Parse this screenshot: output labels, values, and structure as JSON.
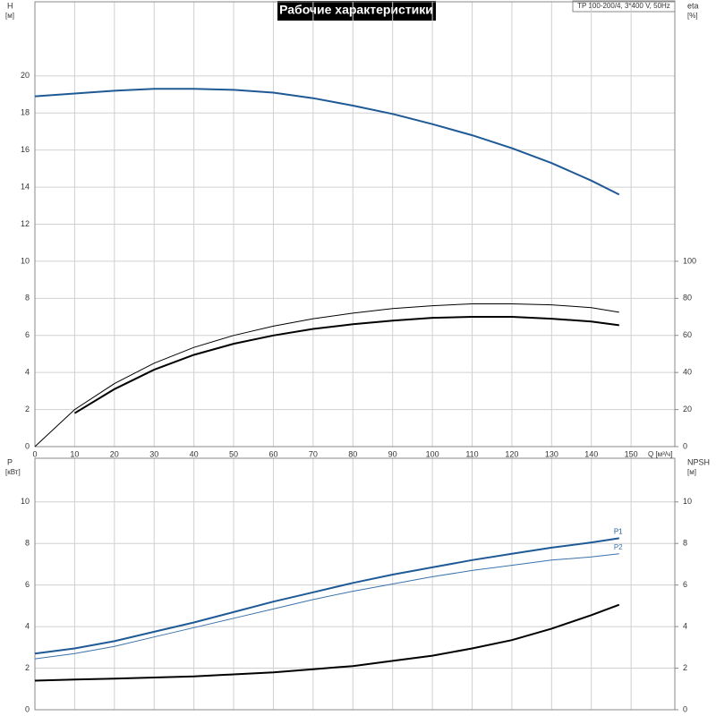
{
  "chart_data": [
    {
      "type": "line",
      "title": "Рабочие характеристики",
      "subtitle": "TP 100-200/4, 3*400 V, 50Hz",
      "ylabel": "H",
      "yunit": "[м]",
      "y2label": "eta",
      "y2unit": "[%]",
      "xlabel": "Q [м³/ч]",
      "x": [
        0,
        10,
        20,
        30,
        40,
        50,
        60,
        70,
        80,
        90,
        100,
        110,
        120,
        130,
        140,
        147
      ],
      "xlim": [
        0,
        161
      ],
      "xticks": [
        0,
        10,
        20,
        30,
        40,
        50,
        60,
        70,
        80,
        90,
        100,
        110,
        120,
        130,
        140,
        150
      ],
      "ylim": [
        0,
        24
      ],
      "yticks": [
        0,
        2,
        4,
        6,
        8,
        10,
        12,
        14,
        16,
        18,
        20
      ],
      "y2lim": [
        0,
        240
      ],
      "y2ticks": [
        0,
        20,
        40,
        60,
        80,
        100
      ],
      "grid": true,
      "series": [
        {
          "color": "#1f5a96",
          "values": [
            18.9,
            19.05,
            19.2,
            19.3,
            19.3,
            19.25,
            19.1,
            18.8,
            18.4,
            17.95,
            17.4,
            16.8,
            16.1,
            15.3,
            14.35,
            13.6
          ]
        },
        {
          "color": "#000000",
          "axis": "y2",
          "values": [
            0,
            20,
            34,
            45,
            53.5,
            60,
            65,
            69,
            72,
            74.5,
            76,
            77,
            77,
            76.5,
            75,
            72.5
          ]
        },
        {
          "color": "#000000",
          "axis": "y2",
          "values": [
            null,
            18,
            31,
            41.5,
            49.5,
            55.5,
            60,
            63.5,
            66,
            68,
            69.5,
            70,
            70,
            69,
            67.5,
            65.5
          ]
        }
      ]
    },
    {
      "type": "line",
      "ylabel": "P",
      "yunit": "[кВт]",
      "y2label": "NPSH",
      "y2unit": "[м]",
      "x": [
        0,
        10,
        20,
        30,
        40,
        50,
        60,
        70,
        80,
        90,
        100,
        110,
        120,
        130,
        140,
        147
      ],
      "xlim": [
        0,
        161
      ],
      "xticks": [
        0,
        10,
        20,
        30,
        40,
        50,
        60,
        70,
        80,
        90,
        100,
        110,
        120,
        130,
        140,
        150
      ],
      "ylim": [
        0,
        12.1
      ],
      "yticks": [
        0,
        2,
        4,
        6,
        8,
        10
      ],
      "y2lim": [
        0,
        12.1
      ],
      "y2ticks": [
        0,
        2,
        4,
        6,
        8,
        10
      ],
      "grid": true,
      "series": [
        {
          "name": "P1",
          "color": "#1f5a96",
          "values": [
            2.7,
            2.95,
            3.3,
            3.75,
            4.2,
            4.7,
            5.2,
            5.65,
            6.1,
            6.5,
            6.85,
            7.2,
            7.5,
            7.8,
            8.05,
            8.25
          ]
        },
        {
          "name": "P2",
          "color": "#3a72ab",
          "values": [
            2.45,
            2.7,
            3.05,
            3.5,
            3.95,
            4.4,
            4.85,
            5.3,
            5.7,
            6.05,
            6.4,
            6.7,
            6.95,
            7.2,
            7.35,
            7.5
          ]
        },
        {
          "color": "#000000",
          "axis": "y2",
          "values": [
            1.4,
            1.45,
            1.5,
            1.55,
            1.6,
            1.7,
            1.8,
            1.95,
            2.1,
            2.35,
            2.6,
            2.95,
            3.35,
            3.9,
            4.55,
            5.05
          ]
        }
      ]
    }
  ]
}
